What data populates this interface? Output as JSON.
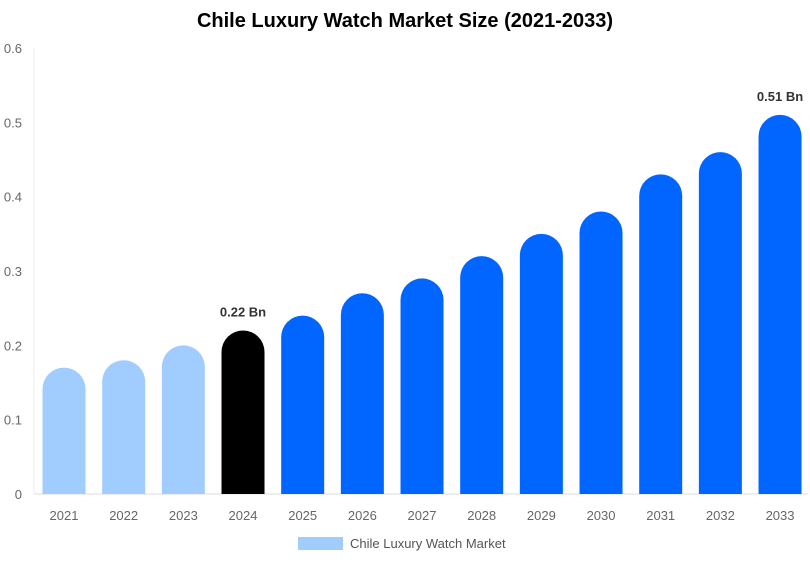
{
  "chart_data": {
    "type": "bar",
    "title": "Chile Luxury Watch Market Size (2021-2033)",
    "categories": [
      "2021",
      "2022",
      "2023",
      "2024",
      "2025",
      "2026",
      "2027",
      "2028",
      "2029",
      "2030",
      "2031",
      "2032",
      "2033"
    ],
    "series": [
      {
        "name": "Chile Luxury Watch Market",
        "values": [
          0.17,
          0.18,
          0.2,
          0.22,
          0.24,
          0.27,
          0.29,
          0.32,
          0.35,
          0.38,
          0.43,
          0.46,
          0.51
        ]
      }
    ],
    "data_labels": {
      "2024": "0.22 Bn",
      "2033": "0.51 Bn"
    },
    "bar_colors": [
      "#a0cdfd",
      "#a0cdfd",
      "#a0cdfd",
      "#000000",
      "#0066ff",
      "#0066ff",
      "#0066ff",
      "#0066ff",
      "#0066ff",
      "#0066ff",
      "#0066ff",
      "#0066ff",
      "#0066ff"
    ],
    "legend_color": "#a0cdfd",
    "yticks": [
      "0",
      "0.1",
      "0.2",
      "0.3",
      "0.4",
      "0.5",
      "0.6"
    ],
    "ylim": [
      0,
      0.6
    ],
    "xlabel": "",
    "ylabel": "",
    "grid": false,
    "legend": "bottom"
  }
}
